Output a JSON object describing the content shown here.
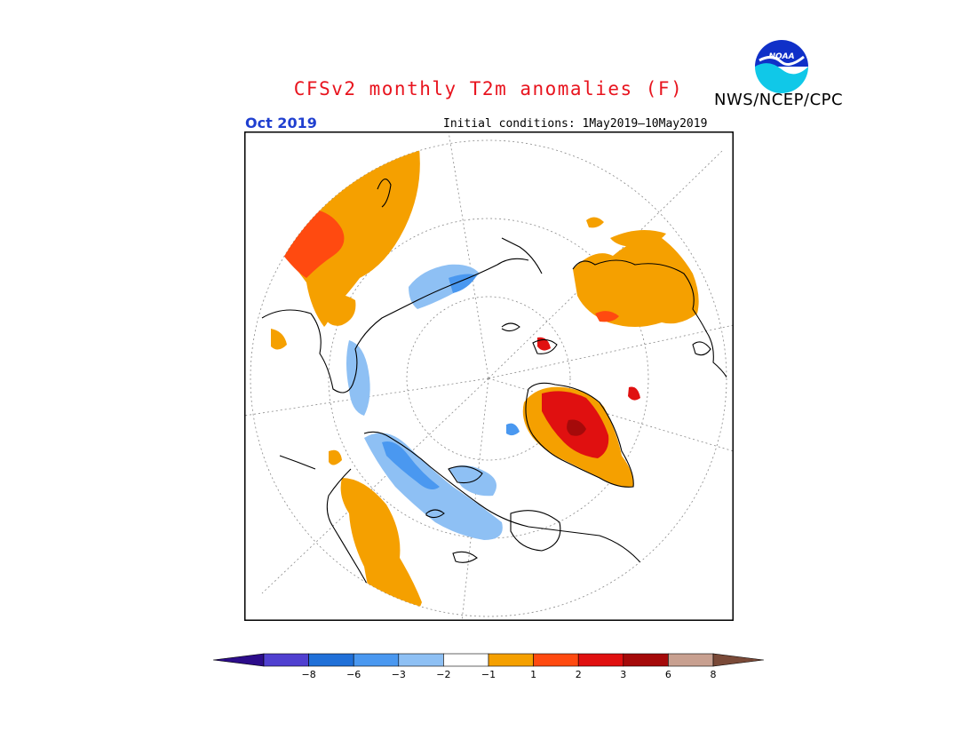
{
  "header": {
    "title": "CFSv2 monthly T2m anomalies (F)",
    "agency": "NWS/NCEP/CPC",
    "logo_text": "NOAA",
    "month": "Oct 2019",
    "initial_conditions": "Initial conditions: 1May2019—10May2019"
  },
  "legend": {
    "bins": [
      {
        "color": "#2c0c8a"
      },
      {
        "color": "#5040d0"
      },
      {
        "color": "#2070d8"
      },
      {
        "color": "#4a98f0"
      },
      {
        "color": "#8ec0f4"
      },
      {
        "color": "#ffffff"
      },
      {
        "color": "#f5a000"
      },
      {
        "color": "#ff4a10"
      },
      {
        "color": "#e01010"
      },
      {
        "color": "#a50a0a"
      },
      {
        "color": "#c8a090"
      },
      {
        "color": "#7a4a38"
      }
    ],
    "ticks": [
      "−8",
      "−6",
      "−3",
      "−2",
      "−1",
      "1",
      "2",
      "3",
      "6",
      "8"
    ]
  },
  "colors": {
    "warm1": "#f5a000",
    "warm2": "#ff4a10",
    "warm3": "#e01010",
    "warm4": "#a50a0a",
    "cool1": "#8ec0f4",
    "cool2": "#4a98f0",
    "cool3": "#2070d8"
  }
}
